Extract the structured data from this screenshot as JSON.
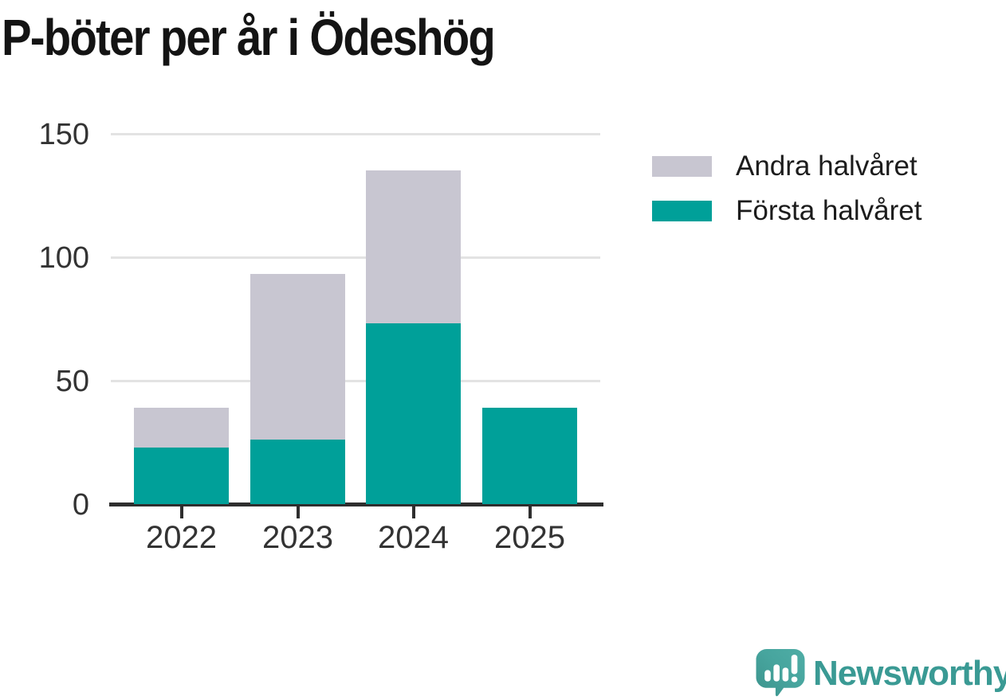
{
  "title": "P-böter per år i Ödeshög",
  "chart_data": {
    "type": "bar",
    "stacked": true,
    "title": "P-böter per år i Ödeshög",
    "categories": [
      "2022",
      "2023",
      "2024",
      "2025"
    ],
    "series": [
      {
        "name": "Första halvåret",
        "color": "#00a099",
        "values": [
          23,
          26,
          73,
          39
        ]
      },
      {
        "name": "Andra halvåret",
        "color": "#c8c6d1",
        "values": [
          16,
          67,
          62,
          0
        ]
      }
    ],
    "totals": [
      39,
      93,
      135,
      39
    ],
    "xlabel": "",
    "ylabel": "",
    "ylim": [
      0,
      150
    ],
    "yticks": [
      0,
      50,
      100,
      150
    ],
    "grid": true,
    "legend_position": "top-right",
    "legend_order": [
      "Andra halvåret",
      "Första halvåret"
    ]
  },
  "legend": {
    "items": [
      {
        "label": "Andra halvåret",
        "color": "#c8c6d1"
      },
      {
        "label": "Första halvåret",
        "color": "#00a099"
      }
    ]
  },
  "branding": {
    "wordmark": "Newsworthy",
    "logo_icon": "speech-bubble-bar-chart-exclamation",
    "wordmark_color": "#3a9a94",
    "logo_color": "#47a59e"
  },
  "colors": {
    "first_half": "#00a099",
    "second_half": "#c8c6d1",
    "grid": "#e3e3e3",
    "axis": "#2e2e2e",
    "tick_text": "#333333",
    "title_text": "#141414"
  }
}
